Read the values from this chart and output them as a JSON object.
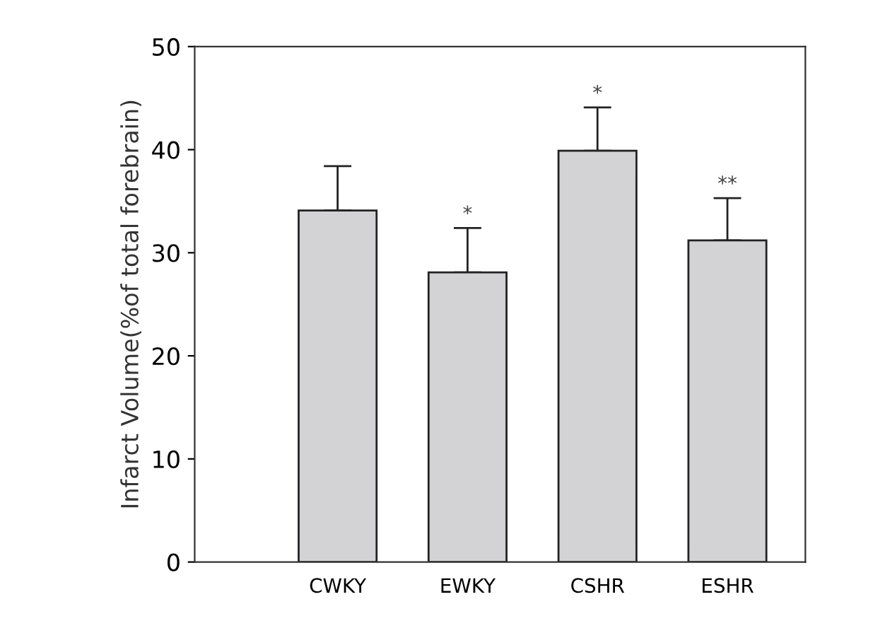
{
  "chart_data": {
    "type": "bar",
    "ylabel": "Infarct Volume(%of total forebrain)",
    "categories": [
      "CWKY",
      "EWKY",
      "CSHR",
      "ESHR"
    ],
    "values": [
      34.1,
      28.1,
      39.9,
      31.2
    ],
    "errors": [
      4.3,
      4.3,
      4.2,
      4.1
    ],
    "color": "#d3d3d5",
    "ylim": [
      0,
      50
    ],
    "yticks": [
      0,
      10,
      20,
      30,
      40,
      50
    ],
    "grid": false,
    "annotations": [
      {
        "text": "*",
        "x": "EWKY",
        "y": 32.4
      },
      {
        "text": "*",
        "x": "CSHR",
        "y": 44.1
      },
      {
        "text": "**",
        "x": "ESHR",
        "y": 35.3
      }
    ]
  }
}
